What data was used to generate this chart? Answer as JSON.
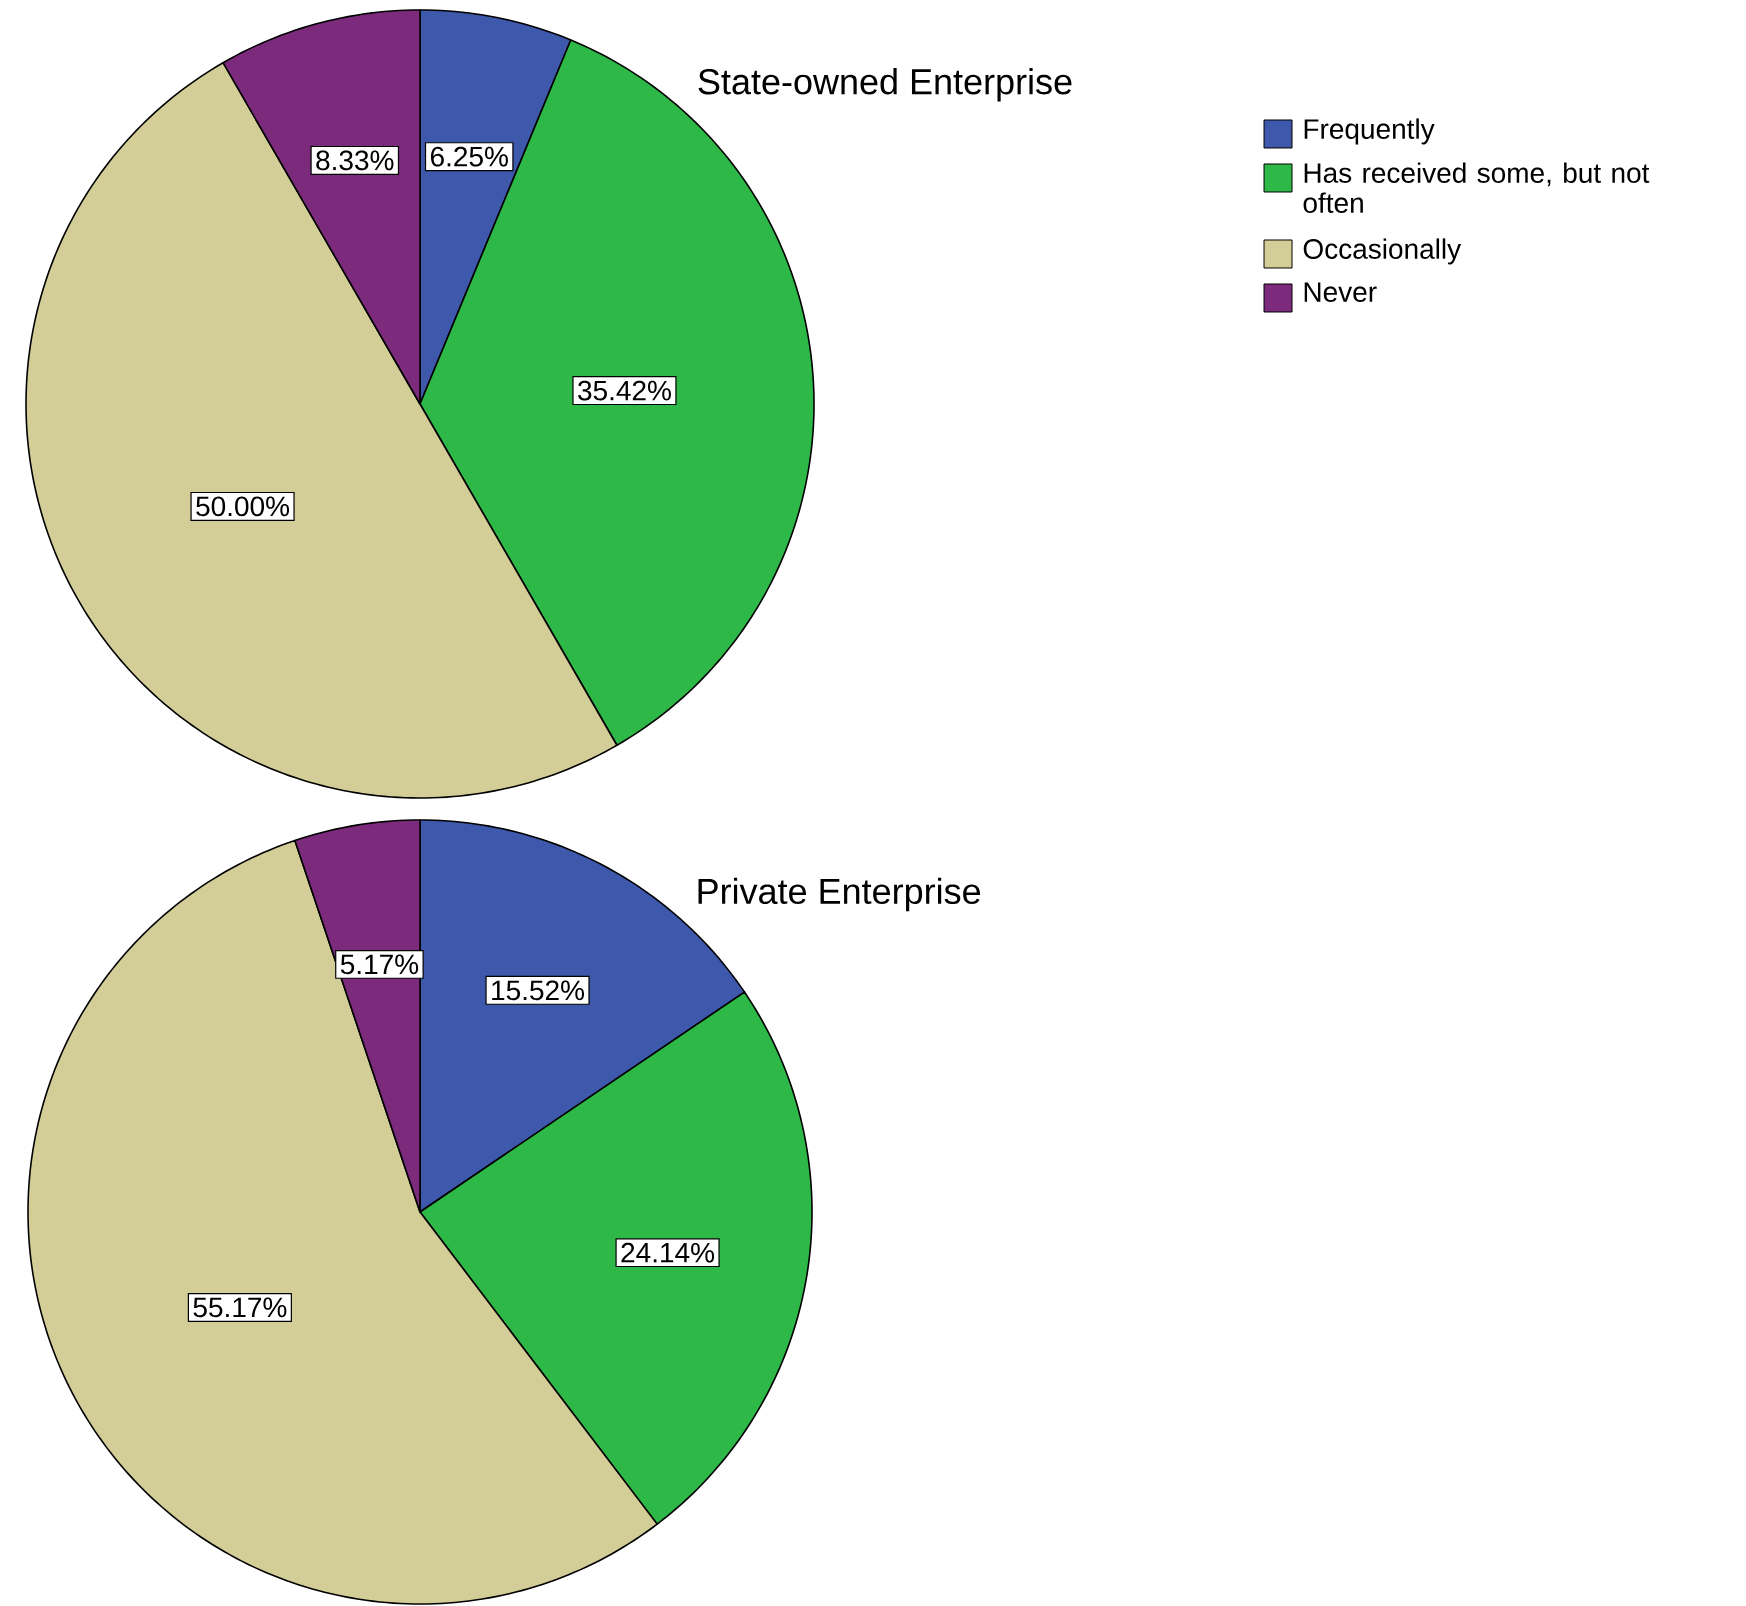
{
  "chart_data": [
    {
      "type": "pie",
      "title": "State-owned Enterprise",
      "categories": [
        "Frequently",
        "Has received some, but not often",
        "Occasionally",
        "Never"
      ],
      "values": [
        6.25,
        35.42,
        50.0,
        8.33
      ],
      "value_labels": [
        "6.25%",
        "35.42%",
        "50.00%",
        "8.33%"
      ],
      "colors": [
        "#3e58ac",
        "#2eb848",
        "#d3ce97",
        "#7c2a7c"
      ],
      "legend": "top right"
    },
    {
      "type": "pie",
      "title": "Private Enterprise",
      "categories": [
        null,
        null,
        null,
        null
      ],
      "values": [
        15.52,
        24.14,
        55.17,
        5.17
      ],
      "value_labels": [
        "15.52%",
        "24.14%",
        "55.17%",
        "5.17%"
      ],
      "colors": [
        "#3e58ac",
        "#2eb848",
        "#d3ce97",
        "#7c2a7c"
      ]
    }
  ]
}
